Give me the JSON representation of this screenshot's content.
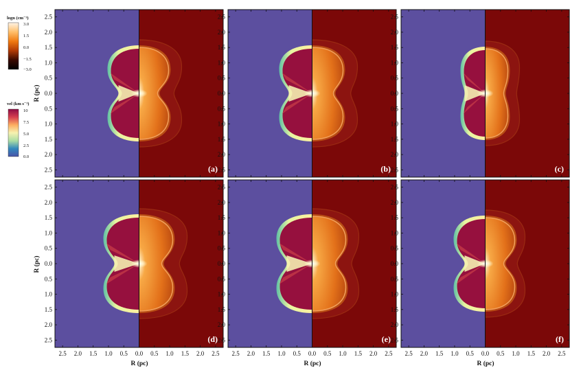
{
  "colorbars": {
    "density": {
      "title": "logn (cm⁻³)",
      "ticks": [
        "3.0",
        "1.5",
        "0.0",
        "−1.5",
        "−3.0"
      ],
      "colors": [
        "#fff4e6",
        "#ffbf6a",
        "#f07a10",
        "#b03a05",
        "#3a0a00",
        "#000000"
      ]
    },
    "velocity": {
      "title": "vel (km s⁻¹)",
      "ticks": [
        "10",
        "7.5",
        "5.0",
        "2.5",
        "0.0"
      ],
      "colors": [
        "#8e0c45",
        "#d53e4f",
        "#fdae61",
        "#f6f2b0",
        "#abdda4",
        "#3288bd",
        "#4a55a8"
      ]
    }
  },
  "axes": {
    "xlabel": "R (pc)",
    "ylabel": "R (pc)",
    "xticks": [
      "2.5",
      "2.0",
      "1.5",
      "1.0",
      "0.5",
      "0.0",
      "0.5",
      "1.0",
      "1.5",
      "2.0",
      "2.5"
    ],
    "yticks": [
      "2.5",
      "2.0",
      "1.5",
      "1.0",
      "0.5",
      "0.0",
      "0.5",
      "1.0",
      "1.5",
      "2.0",
      "2.5"
    ],
    "range": [
      2.75,
      2.75
    ]
  },
  "panels": [
    {
      "label": "(a)"
    },
    {
      "label": "(b)"
    },
    {
      "label": "(c)"
    },
    {
      "label": "(d)"
    },
    {
      "label": "(e)"
    },
    {
      "label": "(f)"
    }
  ],
  "colors": {
    "left_background": "#5c4f9f",
    "right_background": "#7b0808",
    "bubble_fill": "#96103e",
    "density_interior": "#e27d1e",
    "shell_glow": "#f2a05a",
    "shell_edge": "#fdf6a6"
  }
}
